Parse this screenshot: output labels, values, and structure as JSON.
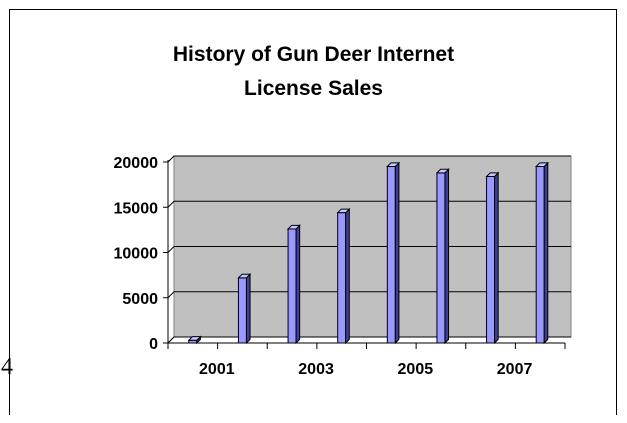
{
  "chart_data": {
    "type": "bar",
    "title_lines": [
      "History of Gun Deer Internet",
      "License Sales"
    ],
    "categories": [
      "2001",
      "2002",
      "2003",
      "2004",
      "2005",
      "2006",
      "2007",
      "2008"
    ],
    "x_tick_labels": [
      "2001",
      "",
      "2003",
      "",
      "2005",
      "",
      "2007",
      ""
    ],
    "values": [
      300,
      7200,
      12600,
      14400,
      19500,
      18800,
      18400,
      19500
    ],
    "ylim": [
      0,
      20000
    ],
    "y_ticks": [
      "0",
      "5000",
      "10000",
      "15000",
      "20000"
    ],
    "grid": true,
    "legend": "none",
    "colors": {
      "bar_front": "#9999ff",
      "bar_side": "#3d3d9e",
      "bar_top": "#c8c8ff",
      "plot_bg": "#c0c0c0"
    }
  },
  "page": {
    "side_number": "4"
  }
}
